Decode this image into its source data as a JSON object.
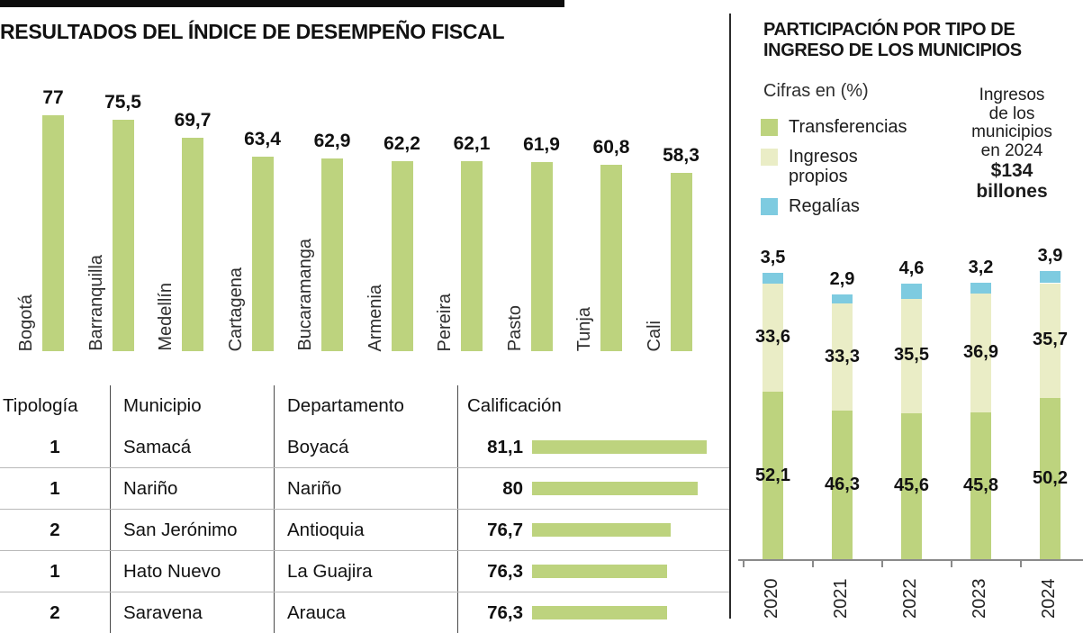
{
  "left_panel": {
    "title": "RESULTADOS DEL ÍNDICE DE DESEMPEÑO FISCAL"
  },
  "right_panel": {
    "title": "PARTICIPACIÓN POR TIPO DE INGRESO DE LOS MUNICIPIOS",
    "units_note": "Cifras en (%)",
    "annotation": {
      "lines": [
        "Ingresos",
        "de los",
        "municipios",
        "en 2024"
      ],
      "highlight_lines": [
        "$134",
        "billones"
      ]
    }
  },
  "colors": {
    "bar_green": "#bdd37e",
    "light_green": "#eaedc6",
    "blue": "#7ecbe0"
  },
  "chart_data": [
    {
      "type": "bar",
      "title": "RESULTADOS DEL ÍNDICE DE DESEMPEÑO FISCAL",
      "categories": [
        "Bogotá",
        "Barranquilla",
        "Medellín",
        "Cartagena",
        "Bucaramanga",
        "Armenia",
        "Pereira",
        "Pasto",
        "Tunja",
        "Cali"
      ],
      "values": [
        77,
        75.5,
        69.7,
        63.4,
        62.9,
        62.2,
        62.1,
        61.9,
        60.8,
        58.3
      ],
      "value_labels": [
        "77",
        "75,5",
        "69,7",
        "63,4",
        "62,9",
        "62,2",
        "62,1",
        "61,9",
        "60,8",
        "58,3"
      ],
      "bar_color": "#bdd37e",
      "xlabel": "",
      "ylabel": "",
      "ylim": [
        0,
        85
      ],
      "grid": false,
      "legend_position": "none"
    },
    {
      "type": "bar",
      "stacked": true,
      "title": "PARTICIPACIÓN POR TIPO DE INGRESO DE LOS MUNICIPIOS",
      "unit": "%",
      "categories": [
        "2020",
        "2021",
        "2022",
        "2023",
        "2024"
      ],
      "series": [
        {
          "name": "Transferencias",
          "color": "#bdd37e",
          "values": [
            52.1,
            46.3,
            45.6,
            45.8,
            50.2
          ],
          "labels": [
            "52,1",
            "46,3",
            "45,6",
            "45,8",
            "50,2"
          ]
        },
        {
          "name": "Ingresos propios",
          "color": "#eaedc6",
          "values": [
            33.6,
            33.3,
            35.5,
            36.9,
            35.7
          ],
          "labels": [
            "33,6",
            "33,3",
            "35,5",
            "36,9",
            "35,7"
          ]
        },
        {
          "name": "Regalías",
          "color": "#7ecbe0",
          "values": [
            3.5,
            2.9,
            4.6,
            3.2,
            3.9
          ],
          "labels": [
            "3,5",
            "2,9",
            "4,6",
            "3,2",
            "3,9"
          ]
        }
      ],
      "xlabel": "",
      "ylabel": "",
      "ylim": [
        0,
        100
      ],
      "grid": false,
      "legend_position": "top-left"
    },
    {
      "type": "table",
      "headers": [
        "Tipología",
        "Municipio",
        "Departamento",
        "Calificación"
      ],
      "rows": [
        {
          "tipologia": "1",
          "municipio": "Samacá",
          "departamento": "Boyacá",
          "calificacion_label": "81,1",
          "calificacion": 81.1
        },
        {
          "tipologia": "1",
          "municipio": "Nariño",
          "departamento": "Nariño",
          "calificacion_label": "80",
          "calificacion": 80
        },
        {
          "tipologia": "2",
          "municipio": "San Jerónimo",
          "departamento": "Antioquia",
          "calificacion_label": "76,7",
          "calificacion": 76.7
        },
        {
          "tipologia": "1",
          "municipio": "Hato Nuevo",
          "departamento": "La Guajira",
          "calificacion_label": "76,3",
          "calificacion": 76.3
        },
        {
          "tipologia": "2",
          "municipio": "Saravena",
          "departamento": "Arauca",
          "calificacion_label": "76,3",
          "calificacion": 76.3
        }
      ]
    }
  ]
}
